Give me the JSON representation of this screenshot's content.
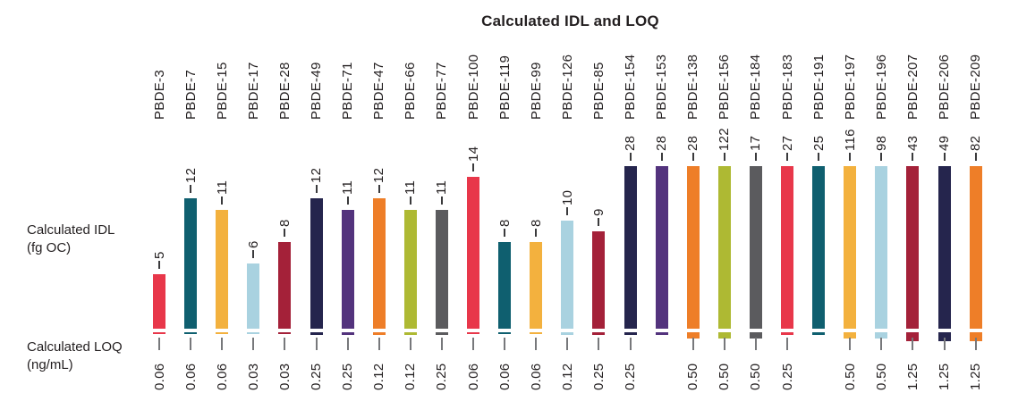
{
  "title": "Calculated IDL and LOQ",
  "row_labels": {
    "idl_line1": "Calculated IDL",
    "idl_line2": "(fg OC)",
    "loq_line1": "Calculated LOQ",
    "loq_line2": "(ng/mL)"
  },
  "colors": {
    "background": "#ffffff",
    "text": "#231f20",
    "tick_top": "#3a3a3c",
    "tick_bottom": "#77787b",
    "palette": {
      "red": "#e8374a",
      "teal": "#0f5f6f",
      "amber": "#f3b13e",
      "lightblue": "#a9d2e0",
      "darkred": "#a42139",
      "navy": "#25254d",
      "purple": "#53337d",
      "orange": "#ee7e28",
      "olive": "#aeb933",
      "gray": "#5b5b5e"
    }
  },
  "chart_data": {
    "type": "bar",
    "title": "Calculated IDL and LOQ",
    "categories": [
      "PBDE-3",
      "PBDE-7",
      "PBDE-15",
      "PBDE-17",
      "PBDE-28",
      "PBDE-49",
      "PBDE-71",
      "PBDE-47",
      "PBDE-66",
      "PBDE-77",
      "PBDE-100",
      "PBDE-119",
      "PBDE-99",
      "PBDE-126",
      "PBDE-85",
      "PBDE-154",
      "PBDE-153",
      "PBDE-138",
      "PBDE-156",
      "PBDE-184",
      "PBDE-183",
      "PBDE-191",
      "PBDE-197",
      "PBDE-196",
      "PBDE-207",
      "PBDE-206",
      "PBDE-209"
    ],
    "series": [
      {
        "name": "Calculated IDL (fg OC)",
        "values": [
          5,
          12,
          11,
          6,
          8,
          12,
          11,
          12,
          11,
          11,
          14,
          8,
          8,
          10,
          9,
          28,
          28,
          28,
          122,
          17,
          27,
          25,
          116,
          98,
          43,
          49,
          82
        ]
      },
      {
        "name": "Calculated LOQ (ng/mL)",
        "values": [
          "0.06",
          "0.06",
          "0.06",
          "0.03",
          "0.03",
          "0.25",
          "0.25",
          "0.12",
          "0.12",
          "0.25",
          "0.06",
          "0.06",
          "0.06",
          "0.12",
          "0.25",
          "0.25",
          "",
          "0.50",
          "0.50",
          "0.50",
          "0.25",
          "",
          "0.50",
          "0.50",
          "1.25",
          "1.25",
          "1.25"
        ]
      }
    ],
    "bar_colors": [
      "#e8374a",
      "#0f5f6f",
      "#f3b13e",
      "#a9d2e0",
      "#a42139",
      "#25254d",
      "#53337d",
      "#ee7e28",
      "#aeb933",
      "#5b5b5e",
      "#e8374a",
      "#0f5f6f",
      "#f3b13e",
      "#a9d2e0",
      "#a42139",
      "#25254d",
      "#53337d",
      "#ee7e28",
      "#aeb933",
      "#5b5b5e",
      "#e8374a",
      "#0f5f6f",
      "#f3b13e",
      "#a9d2e0",
      "#a42139",
      "#25254d",
      "#ee7e28"
    ],
    "layout": {
      "axes_visible": false,
      "grid": false,
      "legend": "none",
      "category_labels_rotated": true,
      "value_labels_rotated": true,
      "bar_axis_max": 15,
      "bars_clipped_above_max": true,
      "loq_marker": "colored dash below baseline, thickness scales with LOQ value"
    }
  }
}
